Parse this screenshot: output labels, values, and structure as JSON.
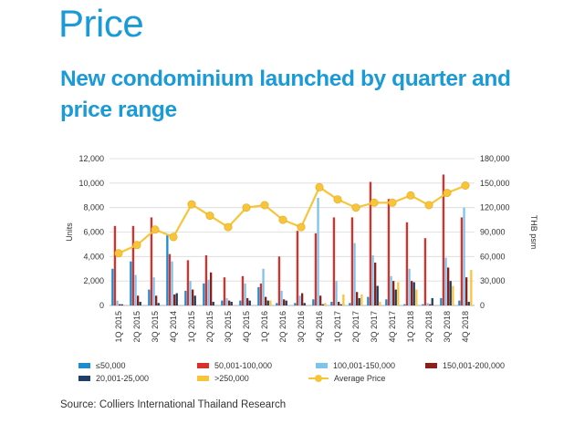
{
  "page": {
    "title": "Price",
    "chart_title": "New condominium launched by quarter and price range",
    "source": "Source: Colliers International Thailand Research"
  },
  "colors": {
    "title": "#1a9ad6",
    "s1": "#1e8dcf",
    "s2": "#da2f2b",
    "s3": "#7ec4ea",
    "s4": "#8c1f1a",
    "s5": "#1f3f66",
    "s6": "#f8c53a",
    "avg": "#f8c53a"
  },
  "chart_data": {
    "type": "bar",
    "categories": [
      "1Q 2015",
      "2Q 2015",
      "3Q 2015",
      "4Q 2014",
      "1Q 2015",
      "2Q 2015",
      "3Q 2015",
      "4Q 2015",
      "1Q 2016",
      "2Q 2016",
      "3Q 2016",
      "4Q 2016",
      "1Q 2017",
      "2Q 2017",
      "3Q 2017",
      "4Q 2017",
      "1Q 2018",
      "2Q 2018",
      "3Q 2018",
      "4Q 2018"
    ],
    "series": [
      {
        "name": "≤50,000",
        "color_key": "s1",
        "values": [
          3000,
          3600,
          1300,
          5800,
          1200,
          1800,
          400,
          400,
          1500,
          200,
          200,
          500,
          300,
          200,
          700,
          500,
          100,
          100,
          600,
          400
        ]
      },
      {
        "name": "50,001-100,000",
        "color_key": "s2",
        "values": [
          6500,
          6500,
          7200,
          4200,
          3700,
          4100,
          2300,
          2400,
          1800,
          4000,
          6100,
          5900,
          7200,
          7200,
          10100,
          8700,
          6800,
          5500,
          10700,
          7200
        ]
      },
      {
        "name": "100,001-150,000",
        "color_key": "s3",
        "values": [
          400,
          2500,
          2300,
          3600,
          2000,
          2100,
          600,
          1800,
          3000,
          1200,
          800,
          8800,
          2000,
          5100,
          4100,
          2400,
          3000,
          200,
          3900,
          8000
        ]
      },
      {
        "name": "150,001-200,000",
        "color_key": "s4",
        "values": [
          100,
          800,
          800,
          900,
          1300,
          2700,
          400,
          600,
          700,
          500,
          1000,
          800,
          300,
          1100,
          3500,
          2000,
          2000,
          100,
          3100,
          2300
        ]
      },
      {
        "name": "20,001-25,000",
        "color_key": "s5",
        "values": [
          100,
          300,
          200,
          1000,
          800,
          300,
          300,
          400,
          400,
          400,
          200,
          100,
          100,
          600,
          1600,
          1300,
          1900,
          600,
          2000,
          300
        ]
      },
      {
        "name": ">250,000",
        "color_key": "s6",
        "values": [
          0,
          0,
          0,
          0,
          0,
          0,
          0,
          0,
          400,
          0,
          0,
          200,
          900,
          900,
          300,
          1900,
          1300,
          0,
          1600,
          2900
        ]
      }
    ],
    "line": {
      "name": "Average Price",
      "color_key": "avg",
      "values": [
        64000,
        74000,
        93000,
        84000,
        124000,
        110000,
        96000,
        120000,
        123000,
        105000,
        96000,
        145000,
        130000,
        120000,
        126000,
        126000,
        135000,
        123000,
        138000,
        147000
      ]
    },
    "y_left": {
      "label": "Units",
      "min": 0,
      "max": 12000,
      "ticks": [
        "0",
        "2,000",
        "4,000",
        "6,000",
        "8,000",
        "10,000",
        "12,000"
      ]
    },
    "y_right": {
      "label": "THB psm",
      "min": 0,
      "max": 180000,
      "ticks": [
        "0",
        "30,000",
        "60,000",
        "90,000",
        "120,000",
        "150,000",
        "180,000"
      ]
    },
    "grid": "horizontal",
    "legend_position": "bottom"
  }
}
